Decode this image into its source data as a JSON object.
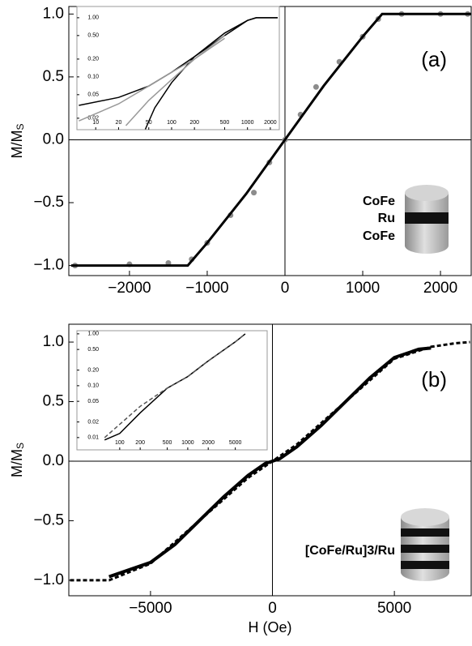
{
  "chart_data": [
    {
      "type": "line",
      "ylabel": "M/M",
      "ylabel_subscript": "S",
      "annotation": "(a)",
      "layer_labels": [
        "CoFe",
        "Ru",
        "CoFe"
      ],
      "xlim": [
        -2780,
        2395
      ],
      "ylim": [
        -1.08,
        1.06
      ],
      "xticks": [
        {
          "value": -2000,
          "label": "−2000"
        },
        {
          "value": -1000,
          "label": "−1000"
        },
        0,
        1000,
        2000
      ],
      "yticks": [
        {
          "value": -1,
          "label": "−1.0"
        },
        {
          "value": -0.5,
          "label": "−0.5"
        },
        {
          "value": 0,
          "label": "0.0"
        },
        {
          "value": 0.5,
          "label": "0.5"
        },
        {
          "value": 1,
          "label": "1.0"
        }
      ],
      "series": [
        {
          "style": "dots",
          "color": "#8c8c8c",
          "x": [
            -2700,
            -2000,
            -1500,
            -1200,
            -1000,
            -700,
            -400,
            -200,
            0,
            200,
            400,
            700,
            1000,
            1200,
            1500,
            2000,
            2350
          ],
          "values": [
            -1,
            -0.99,
            -0.98,
            -0.95,
            -0.82,
            -0.6,
            -0.42,
            -0.18,
            0,
            0.2,
            0.42,
            0.62,
            0.82,
            0.96,
            1,
            1,
            1
          ]
        },
        {
          "style": "line",
          "color": "#000000",
          "x": [
            -2750,
            -1250,
            -1000,
            -500,
            0,
            500,
            1000,
            1250,
            2390
          ],
          "values": [
            -1,
            -1,
            -0.82,
            -0.43,
            0,
            0.43,
            0.82,
            1,
            1
          ]
        }
      ],
      "inset": {
        "log": true,
        "xlim": [
          5.65,
          2627
        ],
        "ylim": [
          0.0128,
          1.55
        ],
        "xticks": [
          10,
          20,
          50,
          100,
          200,
          500,
          1000,
          2000
        ],
        "yticks": [
          0.02,
          0.05,
          {
            "value": 0.1,
            "label": "0.10"
          },
          {
            "value": 0.2,
            "label": "0.20"
          },
          {
            "value": 0.5,
            "label": "0.50"
          },
          {
            "value": 1,
            "label": "1.00"
          }
        ],
        "series": [
          {
            "style": "line",
            "color": "#000000",
            "x": [
              6,
              20,
              50,
              100,
              200,
              500,
              1000,
              1300,
              2500
            ],
            "values": [
              0.033,
              0.045,
              0.07,
              0.12,
              0.22,
              0.5,
              0.9,
              1,
              1
            ]
          },
          {
            "style": "line",
            "color": "#000000",
            "x": [
              45,
              60,
              100,
              200,
              500,
              1000,
              1300,
              2500
            ],
            "values": [
              0.013,
              0.03,
              0.08,
              0.22,
              0.55,
              0.9,
              1,
              1
            ]
          },
          {
            "style": "line",
            "color": "#999999",
            "x": [
              6,
              20,
              50,
              100,
              200,
              500
            ],
            "values": [
              0.018,
              0.035,
              0.07,
              0.12,
              0.2,
              0.45
            ]
          },
          {
            "style": "line",
            "color": "#999999",
            "x": [
              25,
              50,
              100,
              200,
              500
            ],
            "values": [
              0.015,
              0.04,
              0.09,
              0.2,
              0.5
            ]
          }
        ]
      }
    },
    {
      "type": "line",
      "ylabel": "M/M",
      "ylabel_subscript": "S",
      "xlabel": "H (Oe)",
      "annotation": "(b)",
      "layer_labels": [
        "[CoFe/Ru]3/Ru"
      ],
      "xlim": [
        -8350,
        8150
      ],
      "ylim": [
        -1.13,
        1.15
      ],
      "xticks": [
        {
          "value": -5000,
          "label": "−5000"
        },
        0,
        5000
      ],
      "yticks": [
        {
          "value": -1,
          "label": "−1.0"
        },
        {
          "value": -0.5,
          "label": "−0.5"
        },
        {
          "value": 0,
          "label": "0.0"
        },
        {
          "value": 0.5,
          "label": "0.5"
        },
        {
          "value": 1,
          "label": "1.0"
        }
      ],
      "series": [
        {
          "style": "thick",
          "color": "#000000",
          "x": [
            -6700,
            -5000,
            -4000,
            -3000,
            -2000,
            -1000,
            -300,
            0,
            300,
            1000,
            2000,
            3000,
            4000,
            5000,
            6000,
            6500
          ],
          "values": [
            -0.97,
            -0.85,
            -0.7,
            -0.5,
            -0.3,
            -0.12,
            -0.02,
            0,
            0.02,
            0.12,
            0.3,
            0.5,
            0.7,
            0.87,
            0.94,
            0.95
          ]
        },
        {
          "style": "dashed",
          "color": "#000000",
          "x": [
            -8300,
            -6700,
            -5000,
            -3000,
            -1000,
            0,
            1000,
            3000,
            5000,
            6500,
            7500,
            8100
          ],
          "values": [
            -1,
            -1,
            -0.86,
            -0.5,
            -0.14,
            0,
            0.14,
            0.5,
            0.86,
            0.96,
            0.99,
            1
          ]
        }
      ],
      "inset": {
        "log": true,
        "xlim": [
          23.5,
          14700
        ],
        "ylim": [
          0.0058,
          1.15
        ],
        "xticks": [
          100,
          200,
          500,
          1000,
          2000,
          5000
        ],
        "yticks": [
          0.01,
          0.02,
          0.05,
          {
            "value": 0.1,
            "label": "0.10"
          },
          {
            "value": 0.2,
            "label": "0.20"
          },
          {
            "value": 0.5,
            "label": "0.50"
          },
          {
            "value": 1,
            "label": "1.00"
          }
        ],
        "series": [
          {
            "style": "line",
            "color": "#000000",
            "x": [
              60,
              100,
              200,
              500,
              1000,
              2000,
              5000,
              7000
            ],
            "values": [
              0.009,
              0.012,
              0.03,
              0.09,
              0.15,
              0.3,
              0.7,
              1
            ]
          },
          {
            "style": "dashed",
            "color": "#555555",
            "x": [
              60,
              200,
              500,
              1000,
              2000,
              5000,
              7000
            ],
            "values": [
              0.01,
              0.04,
              0.09,
              0.15,
              0.3,
              0.7,
              1
            ]
          }
        ]
      }
    }
  ]
}
